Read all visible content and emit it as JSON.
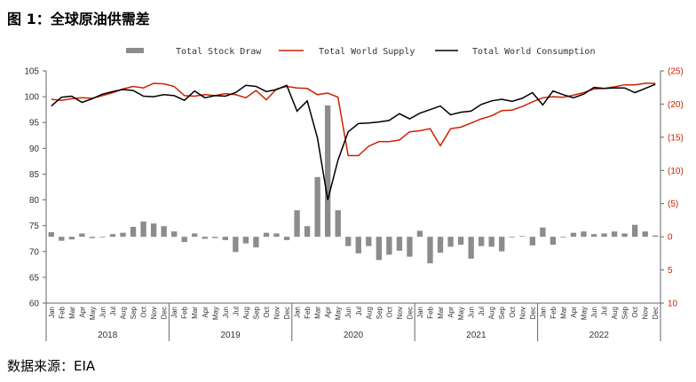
{
  "header": {
    "title": "图 1：全球原油供需差"
  },
  "footer": {
    "source": "数据来源：EIA"
  },
  "colors": {
    "bar": "#8c8c8c",
    "supply": "#cc2200",
    "consumption": "#000000",
    "right_axis": "#cc2200"
  },
  "chart_data": {
    "type": "bar+line",
    "title": "",
    "legend_position": "top",
    "grid": false,
    "left_axis": {
      "range": [
        60,
        105
      ],
      "ticks": [
        60,
        65,
        70,
        75,
        80,
        85,
        90,
        95,
        100,
        105
      ]
    },
    "right_axis": {
      "range": [
        10,
        -25
      ],
      "inverted": true,
      "ticks": [
        -25,
        -20,
        -15,
        -10,
        -5,
        0,
        5,
        10
      ],
      "tick_labels": [
        "(25)",
        "(20)",
        "(15)",
        "(10)",
        "(5)",
        "0",
        "5",
        "10"
      ]
    },
    "month_labels": [
      "Jan",
      "Feb",
      "Mar",
      "Apr",
      "May",
      "Jun",
      "Jul",
      "Aug",
      "Sep",
      "Oct",
      "Nov",
      "Dec"
    ],
    "years": [
      "2018",
      "2019",
      "2020",
      "2021",
      "2022"
    ],
    "series": [
      {
        "name": "Total Stock Draw",
        "type": "bar",
        "axis": "right",
        "values": [
          -0.7,
          0.6,
          0.4,
          -0.5,
          0.2,
          0.1,
          -0.4,
          -0.6,
          -1.5,
          -2.3,
          -2.0,
          -1.6,
          -0.8,
          0.8,
          -0.5,
          0.3,
          0.2,
          0.5,
          2.3,
          1.0,
          1.6,
          -0.6,
          -0.5,
          0.5,
          -4.0,
          -1.6,
          -9.0,
          -19.8,
          -4.0,
          1.4,
          2.5,
          1.4,
          3.5,
          2.7,
          2.1,
          3.0,
          -0.9,
          4.0,
          2.4,
          1.5,
          1.2,
          3.3,
          1.4,
          1.5,
          2.2,
          0.1,
          -0.1,
          1.3,
          -1.4,
          1.2,
          0.1,
          -0.6,
          -0.8,
          -0.4,
          -0.5,
          -0.8,
          -0.5,
          -1.8,
          -0.8,
          -0.2
        ]
      },
      {
        "name": "Total World Supply",
        "type": "line",
        "axis": "left",
        "values": [
          99.5,
          99.3,
          99.6,
          99.8,
          99.7,
          100.2,
          100.8,
          101.5,
          102.0,
          101.7,
          102.6,
          102.5,
          102.0,
          100.2,
          100.1,
          100.4,
          100.2,
          100.6,
          100.4,
          99.8,
          101.2,
          99.4,
          101.5,
          102.0,
          101.7,
          101.6,
          100.4,
          100.7,
          99.9,
          88.6,
          88.6,
          90.4,
          91.3,
          91.3,
          91.6,
          93.2,
          93.4,
          93.8,
          90.5,
          93.8,
          94.1,
          94.9,
          95.7,
          96.3,
          97.3,
          97.4,
          98.1,
          99.0,
          99.8,
          100.0,
          99.9,
          100.3,
          100.8,
          101.5,
          101.6,
          101.9,
          102.3,
          102.3,
          102.6,
          102.6
        ]
      },
      {
        "name": "Total World Consumption",
        "type": "line",
        "axis": "left",
        "values": [
          98.2,
          99.9,
          100.1,
          98.9,
          99.6,
          100.5,
          101.0,
          101.4,
          101.2,
          100.1,
          100.0,
          100.4,
          100.2,
          99.3,
          101.1,
          99.8,
          100.2,
          100.1,
          100.8,
          102.2,
          102.0,
          101.0,
          101.4,
          102.2,
          97.2,
          99.2,
          92.0,
          80.0,
          87.7,
          93.2,
          94.8,
          94.9,
          95.1,
          95.4,
          96.7,
          95.7,
          96.8,
          97.5,
          98.2,
          96.5,
          97.0,
          97.2,
          98.5,
          99.2,
          99.5,
          99.1,
          99.7,
          100.8,
          98.4,
          101.1,
          100.4,
          99.8,
          100.5,
          101.8,
          101.6,
          101.7,
          101.7,
          100.8,
          101.6,
          102.4
        ]
      }
    ]
  }
}
